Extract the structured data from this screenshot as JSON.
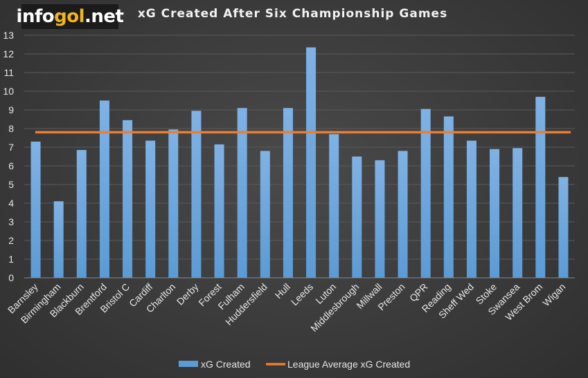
{
  "brand": {
    "logo_prefix": "info",
    "logo_accent": "gol",
    "logo_suffix": ".net"
  },
  "chart_data": {
    "type": "bar",
    "title": "xG Created After Six Championship Games",
    "categories": [
      "Barnsley",
      "Birmingham",
      "Blackburn",
      "Brentford",
      "Bristol C",
      "Cardiff",
      "Charlton",
      "Derby",
      "Forest",
      "Fulham",
      "Huddersfield",
      "Hull",
      "Leeds",
      "Luton",
      "Middlesbrough",
      "Millwall",
      "Preston",
      "QPR",
      "Reading",
      "Sheff Wed",
      "Stoke",
      "Swansea",
      "West Brom",
      "Wigan"
    ],
    "series": [
      {
        "name": "xG Created",
        "type": "bar",
        "color": "#5b9bd5",
        "values": [
          7.3,
          4.1,
          6.85,
          9.5,
          8.45,
          7.35,
          7.95,
          8.95,
          7.15,
          9.1,
          6.8,
          9.1,
          12.35,
          7.7,
          6.5,
          6.3,
          6.8,
          9.05,
          8.65,
          7.35,
          6.9,
          6.95,
          9.7,
          5.4
        ]
      },
      {
        "name": "League Average xG Created",
        "type": "line",
        "color": "#ed7d31",
        "value": 7.8
      }
    ],
    "ylim": [
      0,
      13
    ],
    "yticks": [
      0,
      1,
      2,
      3,
      4,
      5,
      6,
      7,
      8,
      9,
      10,
      11,
      12,
      13
    ],
    "grid": true,
    "legend_position": "bottom"
  }
}
